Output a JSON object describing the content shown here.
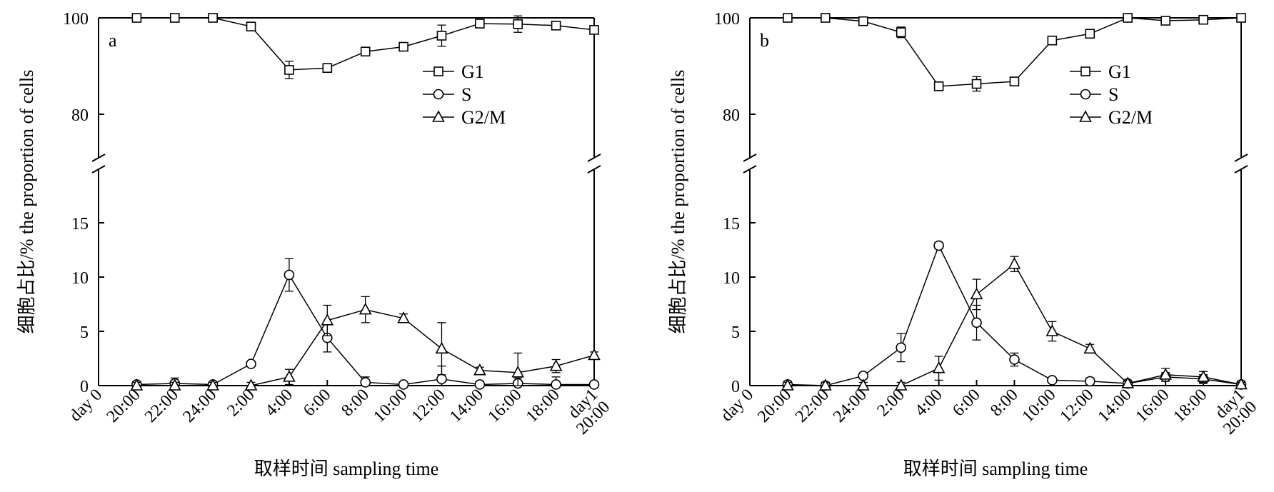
{
  "chart_data": [
    {
      "type": "line",
      "panel_label": "a",
      "ylabel": "细胞占比/%  the proportion of cells",
      "xlabel": "取样时间 sampling time",
      "x_categories": [
        "day 0",
        "20:00",
        "22:00",
        "24:00",
        "2:00",
        "4:00",
        "6:00",
        "8:00",
        "10:00",
        "12:00",
        "14:00",
        "16:00",
        "18:00",
        "day1 20:00"
      ],
      "x_tick_lines": [
        [
          "day 0"
        ],
        [
          "20:00"
        ],
        [
          "22:00"
        ],
        [
          "24:00"
        ],
        [
          "2:00"
        ],
        [
          "4:00"
        ],
        [
          "6:00"
        ],
        [
          "8:00"
        ],
        [
          "10:00"
        ],
        [
          "12:00"
        ],
        [
          "14:00"
        ],
        [
          "16:00"
        ],
        [
          "18:00"
        ],
        [
          "day1",
          "20:00"
        ]
      ],
      "yticks_lower": [
        "0",
        "5",
        "10",
        "15"
      ],
      "yticks_upper": [
        "80",
        "100"
      ],
      "y_axis_break": [
        18,
        75
      ],
      "ylim": [
        0,
        100
      ],
      "legend_position": "top-right",
      "series": [
        {
          "name": "G1",
          "marker": "square",
          "values": [
            null,
            100,
            100,
            100,
            98.2,
            89.2,
            89.6,
            93.0,
            94.0,
            96.3,
            98.8,
            98.7,
            98.4,
            97.5
          ],
          "errors": [
            null,
            0.3,
            0.3,
            0.3,
            0.4,
            1.8,
            0.4,
            0.4,
            0.6,
            2.2,
            0.4,
            1.7,
            0.5,
            0.3
          ]
        },
        {
          "name": "S",
          "marker": "circle",
          "values": [
            null,
            0.1,
            0.2,
            0.1,
            2.0,
            10.2,
            4.4,
            0.3,
            0.1,
            0.6,
            0.1,
            0.2,
            0.1,
            0.1
          ],
          "errors": [
            null,
            0.3,
            0.5,
            0.2,
            0.2,
            1.5,
            1.3,
            0.5,
            0.2,
            1.2,
            0.3,
            0.5,
            0.7,
            0.1
          ]
        },
        {
          "name": "G2/M",
          "marker": "triangle",
          "values": [
            null,
            0.0,
            0.0,
            0.0,
            0.0,
            0.8,
            6.0,
            7.0,
            6.2,
            3.4,
            1.4,
            1.2,
            1.8,
            2.8
          ],
          "errors": [
            null,
            0.3,
            0.3,
            0.3,
            0.3,
            0.7,
            1.4,
            1.2,
            0.4,
            2.4,
            0.3,
            1.8,
            0.6,
            0.3
          ]
        }
      ]
    },
    {
      "type": "line",
      "panel_label": "b",
      "ylabel": "细胞占比/%  the proportion of cells",
      "xlabel": "取样时间  sampling time",
      "x_categories": [
        "day 0",
        "20:00",
        "22:00",
        "24:00",
        "2:00",
        "4:00",
        "6:00",
        "8:00",
        "10:00",
        "12:00",
        "14:00",
        "16:00",
        "18:00",
        "day1 20:00"
      ],
      "x_tick_lines": [
        [
          "day 0"
        ],
        [
          "20:00"
        ],
        [
          "22:00"
        ],
        [
          "24:00"
        ],
        [
          "2:00"
        ],
        [
          "4:00"
        ],
        [
          "6:00"
        ],
        [
          "8:00"
        ],
        [
          "10:00"
        ],
        [
          "12:00"
        ],
        [
          "14:00"
        ],
        [
          "16:00"
        ],
        [
          "18:00"
        ],
        [
          "day1",
          "20:00"
        ]
      ],
      "yticks_lower": [
        "0",
        "5",
        "10",
        "15"
      ],
      "yticks_upper": [
        "80",
        "100"
      ],
      "y_axis_break": [
        18,
        75
      ],
      "ylim": [
        0,
        100
      ],
      "legend_position": "top-right",
      "series": [
        {
          "name": "G1",
          "marker": "square",
          "values": [
            null,
            100,
            100,
            99.3,
            97.0,
            85.8,
            86.3,
            86.8,
            95.3,
            96.7,
            100,
            99.4,
            99.6,
            100
          ],
          "errors": [
            null,
            0.2,
            0.2,
            0.6,
            1.1,
            0.8,
            1.5,
            0.3,
            0.9,
            0.6,
            0.2,
            0.8,
            0.5,
            0.2
          ]
        },
        {
          "name": "S",
          "marker": "circle",
          "values": [
            null,
            0.1,
            0.0,
            0.9,
            3.5,
            12.9,
            5.8,
            2.4,
            0.5,
            0.4,
            0.2,
            0.8,
            0.6,
            0.1
          ],
          "errors": [
            null,
            0.3,
            0.3,
            0.2,
            1.3,
            0.3,
            1.6,
            0.6,
            0.2,
            0.3,
            0.2,
            0.4,
            0.4,
            0.3
          ]
        },
        {
          "name": "G2/M",
          "marker": "triangle",
          "values": [
            null,
            0.0,
            0.0,
            0.0,
            0.0,
            1.6,
            8.4,
            11.2,
            5.0,
            3.4,
            0.2,
            1.0,
            0.8,
            0.1
          ],
          "errors": [
            null,
            0.3,
            0.3,
            0.3,
            0.3,
            1.1,
            1.4,
            0.7,
            0.9,
            0.4,
            0.2,
            0.6,
            0.5,
            0.2
          ]
        }
      ]
    }
  ]
}
